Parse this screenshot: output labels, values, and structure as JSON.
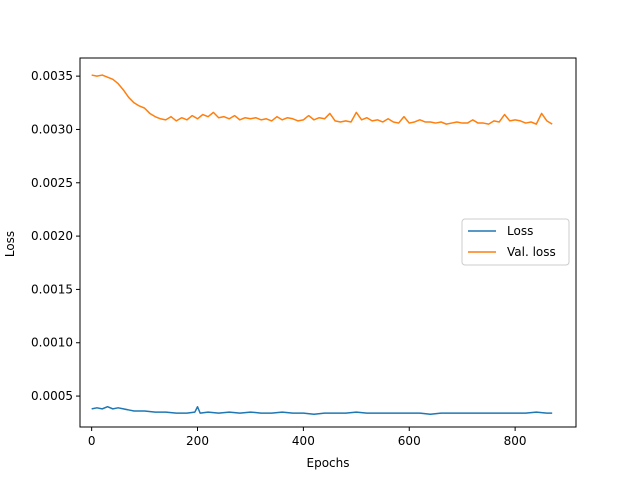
{
  "chart_data": {
    "type": "line",
    "xlabel": "Epochs",
    "ylabel": "Loss",
    "xlim": [
      -22,
      915
    ],
    "ylim": [
      0.00021,
      0.00367
    ],
    "xticks": [
      0,
      200,
      400,
      600,
      800
    ],
    "yticks": [
      0.0005,
      0.001,
      0.0015,
      0.002,
      0.0025,
      0.003,
      0.0035
    ],
    "ytick_labels": [
      "0.0005",
      "0.0010",
      "0.0015",
      "0.0020",
      "0.0025",
      "0.0030",
      "0.0035"
    ],
    "grid": false,
    "legend_position": "center-right",
    "series": [
      {
        "name": "Loss",
        "color": "#1f77b4",
        "x": [
          0,
          10,
          20,
          30,
          40,
          50,
          60,
          70,
          80,
          90,
          100,
          120,
          140,
          160,
          180,
          195,
          200,
          205,
          220,
          240,
          260,
          280,
          300,
          320,
          340,
          360,
          380,
          400,
          420,
          440,
          460,
          480,
          500,
          520,
          540,
          560,
          580,
          600,
          620,
          640,
          660,
          680,
          700,
          720,
          740,
          760,
          780,
          800,
          820,
          840,
          860,
          870
        ],
        "y": [
          0.00038,
          0.00039,
          0.00038,
          0.0004,
          0.00038,
          0.00039,
          0.00038,
          0.00037,
          0.00036,
          0.00036,
          0.00036,
          0.00035,
          0.00035,
          0.00034,
          0.00034,
          0.00035,
          0.0004,
          0.00034,
          0.00035,
          0.00034,
          0.00035,
          0.00034,
          0.00035,
          0.00034,
          0.00034,
          0.00035,
          0.00034,
          0.00034,
          0.00033,
          0.00034,
          0.00034,
          0.00034,
          0.00035,
          0.00034,
          0.00034,
          0.00034,
          0.00034,
          0.00034,
          0.00034,
          0.00033,
          0.00034,
          0.00034,
          0.00034,
          0.00034,
          0.00034,
          0.00034,
          0.00034,
          0.00034,
          0.00034,
          0.00035,
          0.00034,
          0.00034
        ]
      },
      {
        "name": "Val. loss",
        "color": "#ff7f0e",
        "x": [
          0,
          10,
          20,
          30,
          40,
          50,
          60,
          70,
          80,
          90,
          100,
          110,
          120,
          130,
          140,
          150,
          160,
          170,
          180,
          190,
          200,
          210,
          220,
          230,
          240,
          250,
          260,
          270,
          280,
          290,
          300,
          310,
          320,
          330,
          340,
          350,
          360,
          370,
          380,
          390,
          400,
          410,
          420,
          430,
          440,
          450,
          460,
          470,
          480,
          490,
          500,
          510,
          520,
          530,
          540,
          550,
          560,
          570,
          580,
          590,
          600,
          610,
          620,
          630,
          640,
          650,
          660,
          670,
          680,
          690,
          700,
          710,
          720,
          730,
          740,
          750,
          760,
          770,
          780,
          790,
          800,
          810,
          820,
          830,
          840,
          850,
          860,
          870
        ],
        "y": [
          0.00351,
          0.0035,
          0.00351,
          0.00349,
          0.00347,
          0.00343,
          0.00337,
          0.0033,
          0.00325,
          0.00322,
          0.0032,
          0.00315,
          0.00312,
          0.0031,
          0.00309,
          0.00312,
          0.00308,
          0.00311,
          0.00309,
          0.00313,
          0.0031,
          0.00314,
          0.00312,
          0.00316,
          0.00311,
          0.00312,
          0.0031,
          0.00313,
          0.00309,
          0.00311,
          0.0031,
          0.00311,
          0.00309,
          0.0031,
          0.00308,
          0.00312,
          0.00309,
          0.00311,
          0.0031,
          0.00308,
          0.00309,
          0.00313,
          0.00309,
          0.00311,
          0.0031,
          0.00315,
          0.00308,
          0.00307,
          0.00308,
          0.00307,
          0.00316,
          0.00309,
          0.00311,
          0.00308,
          0.00309,
          0.00307,
          0.0031,
          0.00307,
          0.00306,
          0.00312,
          0.00306,
          0.00307,
          0.00309,
          0.00307,
          0.00307,
          0.00306,
          0.00307,
          0.00305,
          0.00306,
          0.00307,
          0.00306,
          0.00306,
          0.00309,
          0.00306,
          0.00306,
          0.00305,
          0.00308,
          0.00307,
          0.00314,
          0.00308,
          0.00309,
          0.00308,
          0.00306,
          0.00307,
          0.00305,
          0.00315,
          0.00308,
          0.00305
        ]
      }
    ]
  }
}
